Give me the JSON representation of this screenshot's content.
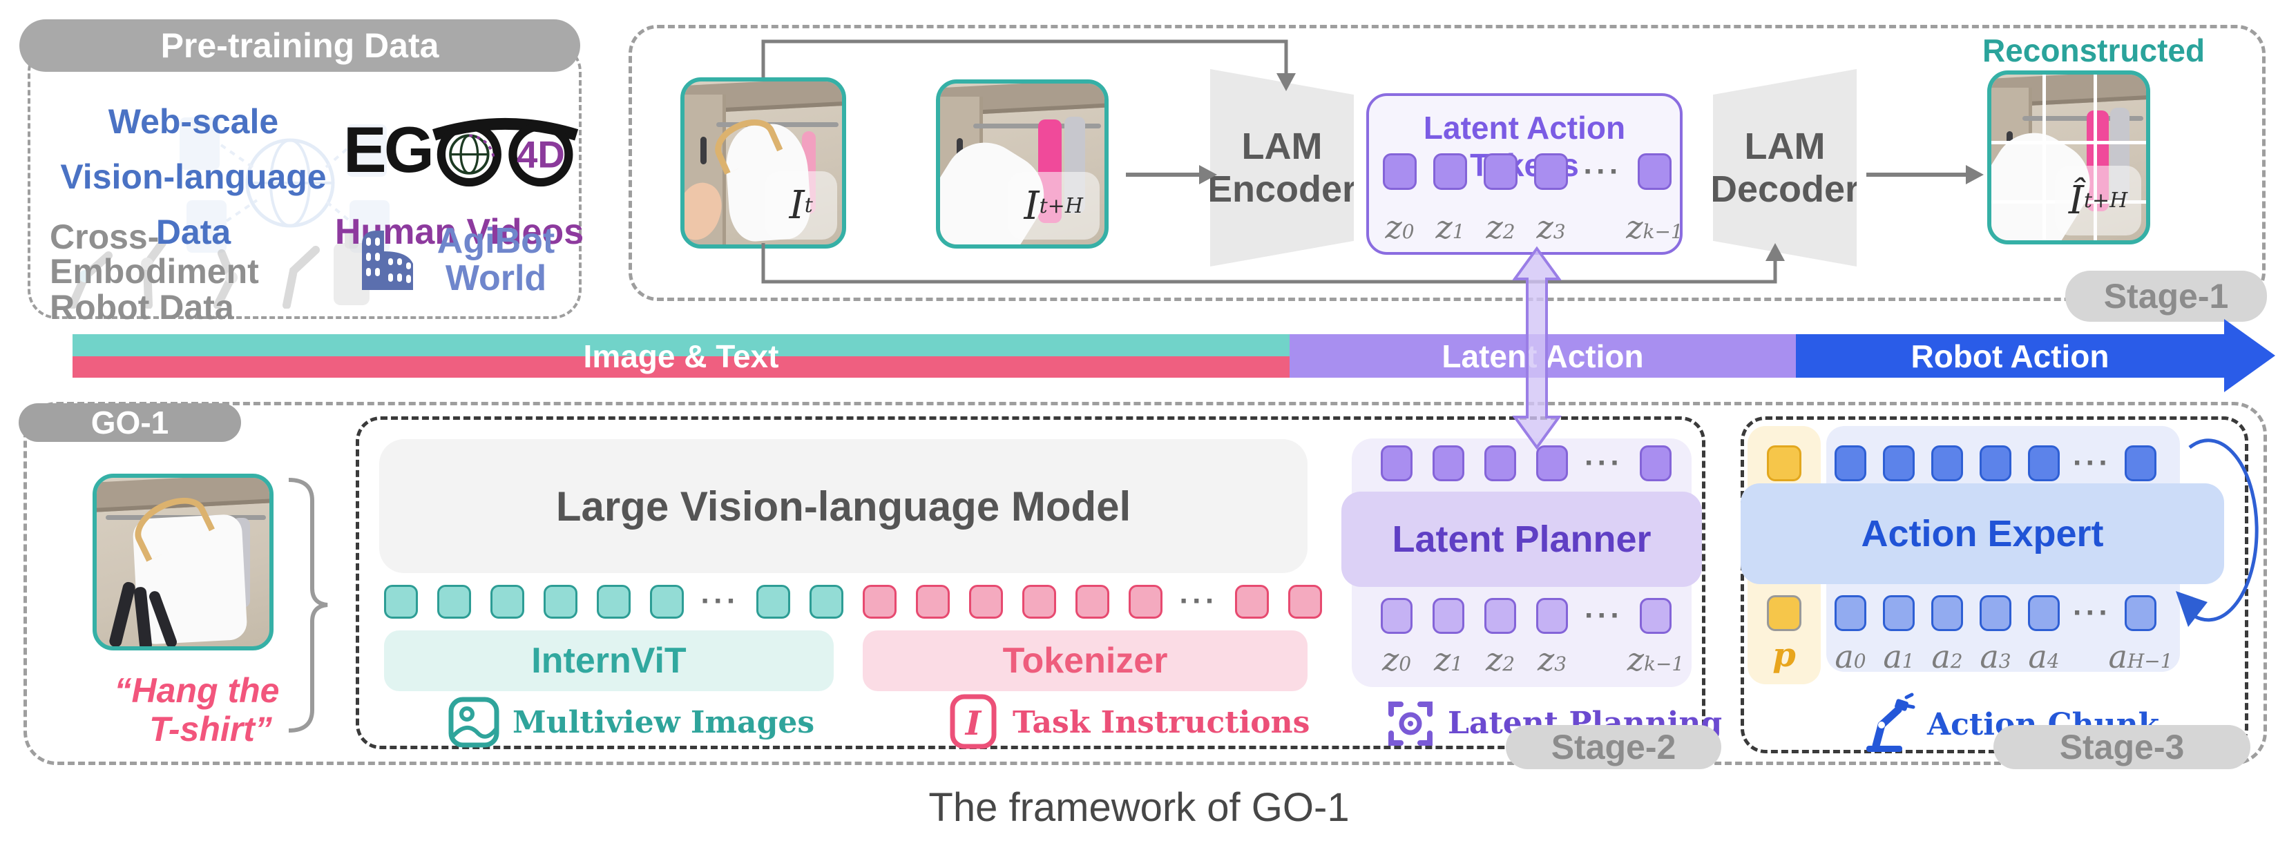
{
  "colors": {
    "teal_photo_border": "#35b0a6",
    "bar_teal": "#71d3c9",
    "bar_pink": "#ef5f80",
    "bar_purple": "#a88ff0",
    "bar_blue": "#2a5ce8",
    "purple_accent": "#7b5ce4",
    "blue_accent": "#2053d6",
    "pink_accent": "#ee5d7d",
    "teal_accent": "#2fa49b"
  },
  "pretraining": {
    "title": "Pre-training Data",
    "web_scale_lines": [
      "Web-scale",
      "Vision-language",
      "Data"
    ],
    "ego_eg": "EG",
    "ego_4d": "4D",
    "human_videos": "Human Videos",
    "cross_lines": [
      "Cross-Embodiment",
      "Robot Data"
    ],
    "agibot_lines": [
      "AgiBot",
      "World"
    ]
  },
  "stage1": {
    "pill": "Stage-1",
    "encoder_lines": [
      "LAM",
      "Encoder"
    ],
    "decoder_lines": [
      "LAM",
      "Decoder"
    ],
    "tokens_title": "Latent Action Tokens",
    "reconstructed": "Reconstructed",
    "frame_t": {
      "b": "I",
      "s": "t"
    },
    "frame_th": {
      "b": "I",
      "s": "t+H"
    },
    "recon_label": {
      "b": "Î",
      "s": "t+H"
    },
    "z_labels": [
      {
        "b": "z",
        "s": "0"
      },
      {
        "b": "z",
        "s": "1"
      },
      {
        "b": "z",
        "s": "2"
      },
      {
        "b": "z",
        "s": "3"
      },
      {
        "b": "z",
        "s": "k−1"
      }
    ]
  },
  "bar": {
    "image_text": "Image & Text",
    "latent_action": "Latent Action",
    "robot_action": "Robot Action"
  },
  "go1": {
    "pill": "GO-1",
    "instruction_lines": [
      "“Hang the",
      "T-shirt”"
    ]
  },
  "stage2": {
    "pill": "Stage-2",
    "vlm": "Large Vision-language Model",
    "internvit": "InternViT",
    "tokenizer": "Tokenizer",
    "multiview": "Multiview Images",
    "task_instructions": "Task Instructions",
    "planner": "Latent Planner",
    "latent_planning": "Latent Planning",
    "z_labels": [
      {
        "b": "z",
        "s": "0"
      },
      {
        "b": "z",
        "s": "1"
      },
      {
        "b": "z",
        "s": "2"
      },
      {
        "b": "z",
        "s": "3"
      },
      {
        "b": "z",
        "s": "k−1"
      }
    ]
  },
  "stage3": {
    "pill": "Stage-3",
    "expert": "Action Expert",
    "p_label": "p",
    "action_chunk": "Action Chunk",
    "a_labels": [
      {
        "b": "a",
        "s": "0"
      },
      {
        "b": "a",
        "s": "1"
      },
      {
        "b": "a",
        "s": "2"
      },
      {
        "b": "a",
        "s": "3"
      },
      {
        "b": "a",
        "s": "4"
      },
      {
        "b": "a",
        "s": "H−1"
      }
    ]
  },
  "caption": "The framework of GO-1",
  "tokens": {
    "dots": "···",
    "stage1_latent": {
      "before": 4,
      "dots": true,
      "after": 1,
      "w": 49,
      "h": 53,
      "gap": 24,
      "dotsW": 53,
      "fill": "#a98ef0",
      "stroke": "#8464d8"
    },
    "teal": {
      "before": 6,
      "dots": true,
      "after": 2,
      "w": 49,
      "h": 49,
      "gap": 28,
      "dotsW": 49,
      "fill": "#93dcd5",
      "stroke": "#2d9d95"
    },
    "pink": {
      "before": 6,
      "dots": true,
      "after": 2,
      "w": 49,
      "h": 49,
      "gap": 28,
      "dotsW": 49,
      "fill": "#f4aabf",
      "stroke": "#e74a70"
    },
    "planner_top": {
      "before": 4,
      "dots": true,
      "after": 1,
      "w": 46,
      "h": 52,
      "gap": 29,
      "dotsW": 46,
      "fill": "#a98ef0",
      "stroke": "#8464d8"
    },
    "planner_bottom": {
      "before": 4,
      "dots": true,
      "after": 1,
      "w": 46,
      "h": 52,
      "gap": 29,
      "dotsW": 46,
      "fill": "#c5b2f4",
      "stroke": "#8464d8"
    },
    "ae_top": {
      "before": 5,
      "dots": true,
      "after": 1,
      "w": 46,
      "h": 52,
      "gap": 24,
      "dotsW": 46,
      "fill": "#5c83ea",
      "stroke": "#2e5fd4"
    },
    "ae_bottom": {
      "before": 5,
      "dots": true,
      "after": 1,
      "w": 46,
      "h": 52,
      "gap": 24,
      "dotsW": 46,
      "fill": "#92abf0",
      "stroke": "#2e5fd4"
    }
  }
}
